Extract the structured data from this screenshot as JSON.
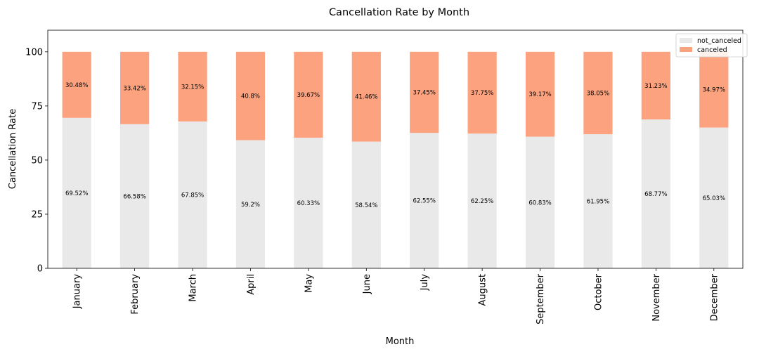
{
  "chart_data": {
    "type": "bar",
    "stacked": true,
    "title": "Cancellation Rate by Month",
    "xlabel": "Month",
    "ylabel": "Cancellation Rate",
    "ylim": [
      0,
      110
    ],
    "yticks": [
      0,
      25,
      50,
      75,
      100
    ],
    "grid": false,
    "legend_position": "top-right",
    "categories": [
      "January",
      "February",
      "March",
      "April",
      "May",
      "June",
      "July",
      "August",
      "September",
      "October",
      "November",
      "December"
    ],
    "series": [
      {
        "name": "not_canceled",
        "color": "#e9e9e9",
        "values": [
          69.52,
          66.58,
          67.85,
          59.2,
          60.33,
          58.54,
          62.55,
          62.25,
          60.83,
          61.95,
          68.77,
          65.03
        ],
        "labels": [
          "69.52%",
          "66.58%",
          "67.85%",
          "59.2%",
          "60.33%",
          "58.54%",
          "62.55%",
          "62.25%",
          "60.83%",
          "61.95%",
          "68.77%",
          "65.03%"
        ]
      },
      {
        "name": "canceled",
        "color": "#fca27e",
        "values": [
          30.48,
          33.42,
          32.15,
          40.8,
          39.67,
          41.46,
          37.45,
          37.75,
          39.17,
          38.05,
          31.23,
          34.97
        ],
        "labels": [
          "30.48%",
          "33.42%",
          "32.15%",
          "40.8%",
          "39.67%",
          "41.46%",
          "37.45%",
          "37.75%",
          "39.17%",
          "38.05%",
          "31.23%",
          "34.97%"
        ]
      }
    ]
  }
}
